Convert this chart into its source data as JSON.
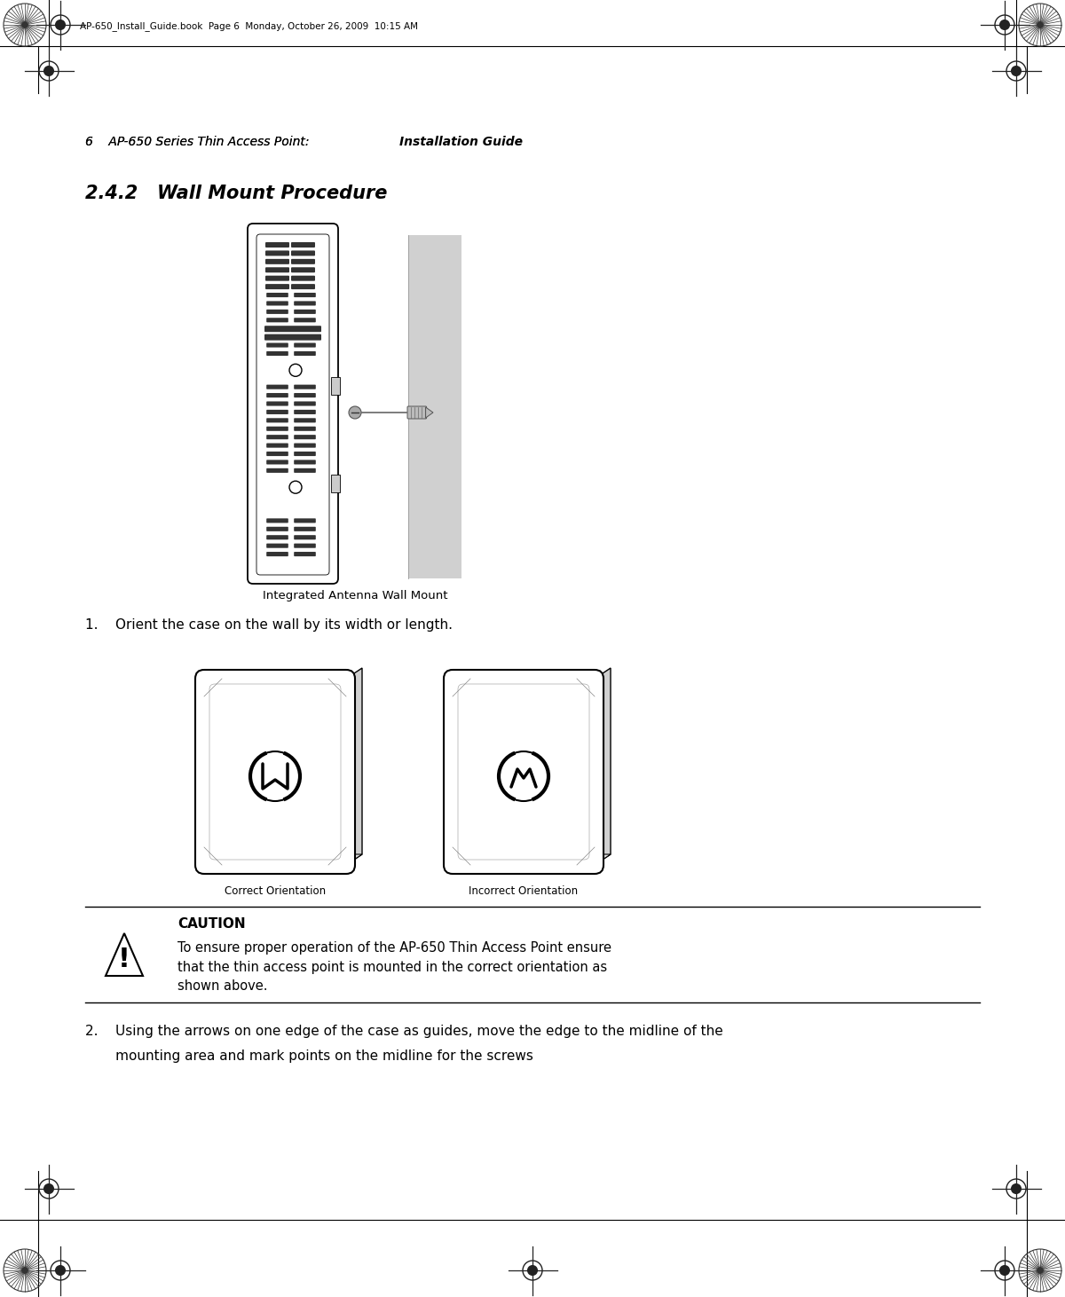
{
  "page_header_text": "AP-650_Install_Guide.book  Page 6  Monday, October 26, 2009  10:15 AM",
  "section_title_plain": "AP-650 Series Thin Access Point:",
  "section_title_bold": "Installation Guide",
  "chapter_title": "2.4.2   Wall Mount Procedure",
  "figure1_caption": "Integrated Antenna Wall Mount",
  "step1_text": "1.    Orient the case on the wall by its width or length.",
  "correct_label": "Correct Orientation",
  "incorrect_label": "Incorrect Orientation",
  "caution_label": "CAUTION",
  "caution_text_line1": "To ensure proper operation of the AP-650 Thin Access Point ensure",
  "caution_text_line2": "that the thin access point is mounted in the correct orientation as",
  "caution_text_line3": "shown above.",
  "step2_line1": "2.    Using the arrows on one edge of the case as guides, move the edge to the midline of the",
  "step2_line2": "       mounting area and mark points on the midline for the screws",
  "bg_color": "#ffffff",
  "text_color": "#000000",
  "light_gray": "#d0d0d0",
  "mid_gray": "#b0b0b0",
  "dark_gray": "#555555"
}
